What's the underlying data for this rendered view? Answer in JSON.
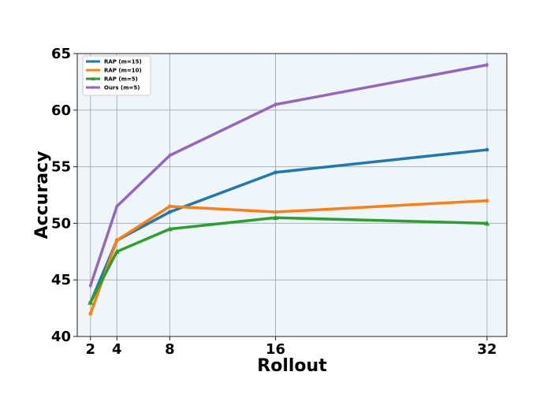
{
  "chart_data": {
    "type": "line",
    "title": "",
    "xlabel": "Rollout",
    "ylabel": "Accuracy",
    "x": [
      2,
      4,
      8,
      16,
      32
    ],
    "xticks": [
      2,
      4,
      8,
      16,
      32
    ],
    "xlim": [
      1,
      33.5
    ],
    "yticks": [
      40,
      45,
      50,
      55,
      60,
      65
    ],
    "ylim": [
      40,
      65
    ],
    "grid": true,
    "legend_position": "top-left",
    "plot_background": "#eef6fc",
    "series": [
      {
        "name": "RAP (m=15)",
        "color": "#1f77b4",
        "marker": "circle",
        "values": [
          43.0,
          48.5,
          51.0,
          54.5,
          56.5
        ]
      },
      {
        "name": "RAP (m=10)",
        "color": "#ff7f0e",
        "marker": "square",
        "values": [
          42.0,
          48.5,
          51.5,
          51.0,
          52.0
        ]
      },
      {
        "name": "RAP (m=5)",
        "color": "#2ca02c",
        "marker": "triangle",
        "values": [
          43.0,
          47.5,
          49.5,
          50.5,
          50.0
        ]
      },
      {
        "name": "Ours (m=5)",
        "color": "#9467bd",
        "marker": "diamond",
        "values": [
          44.5,
          51.5,
          56.0,
          60.5,
          64.0
        ]
      }
    ]
  }
}
